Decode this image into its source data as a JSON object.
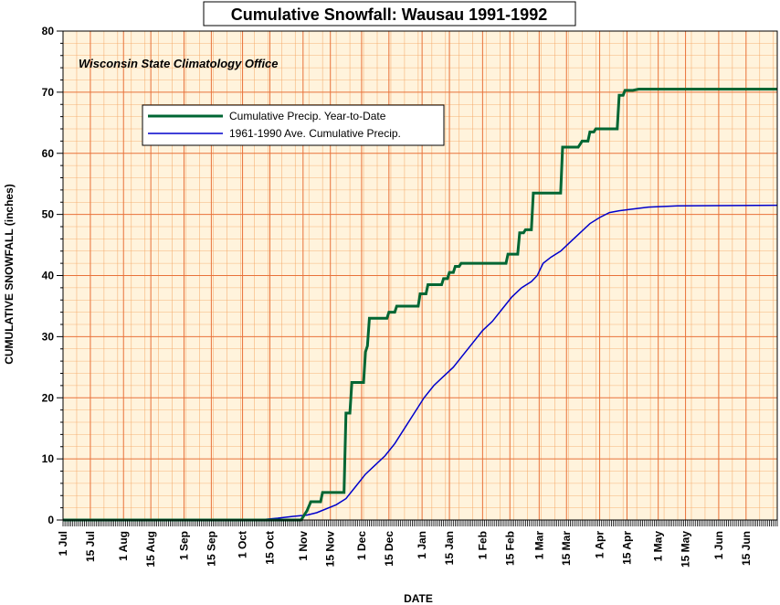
{
  "chart_data": {
    "type": "line",
    "title": "Cumulative Snowfall: Wausau 1991-1992",
    "annotation": "Wisconsin State Climatology Office",
    "xlabel": "DATE",
    "ylabel": "CUMULATIVE SNOWFALL (inches)",
    "ylim": [
      0,
      80
    ],
    "y_ticks": [
      "0",
      "10",
      "20",
      "30",
      "40",
      "50",
      "60",
      "70",
      "80"
    ],
    "x_tick_labels": [
      "1 Jul",
      "15 Jul",
      "1 Aug",
      "15 Aug",
      "1 Sep",
      "15 Sep",
      "1 Oct",
      "15 Oct",
      "1 Nov",
      "15 Nov",
      "1 Dec",
      "15 Dec",
      "1 Jan",
      "15 Jan",
      "1 Feb",
      "15 Feb",
      "1 Mar",
      "15 Mar",
      "1 Apr",
      "15 Apr",
      "1 May",
      "15 May",
      "1 Jun",
      "15 Jun"
    ],
    "x_tick_days": [
      0,
      14,
      31,
      45,
      62,
      76,
      92,
      106,
      123,
      137,
      153,
      167,
      184,
      198,
      215,
      229,
      244,
      258,
      275,
      289,
      305,
      319,
      336,
      350
    ],
    "x_range_days": [
      0,
      366
    ],
    "grid": true,
    "grid_color": "#f4a460",
    "plot_background": "#fff3dc",
    "legend_position": "upper-left",
    "series": [
      {
        "name": "Cumulative Precip. Year-to-Date",
        "color": "#006633",
        "step": true,
        "points": [
          [
            0,
            0
          ],
          [
            122,
            0
          ],
          [
            125,
            1.5
          ],
          [
            127,
            3
          ],
          [
            132,
            3
          ],
          [
            133,
            4.5
          ],
          [
            144,
            4.5
          ],
          [
            145,
            17.5
          ],
          [
            147,
            17.5
          ],
          [
            148,
            22.5
          ],
          [
            154,
            22.5
          ],
          [
            155,
            27.5
          ],
          [
            156,
            28.5
          ],
          [
            157,
            33
          ],
          [
            166,
            33
          ],
          [
            167,
            34
          ],
          [
            170,
            34
          ],
          [
            171,
            35
          ],
          [
            182,
            35
          ],
          [
            183,
            37
          ],
          [
            186,
            37
          ],
          [
            187,
            38.5
          ],
          [
            194,
            38.5
          ],
          [
            195,
            39.5
          ],
          [
            197,
            39.5
          ],
          [
            198,
            40.5
          ],
          [
            200,
            40.5
          ],
          [
            201,
            41.5
          ],
          [
            203,
            41.5
          ],
          [
            204,
            42
          ],
          [
            227,
            42
          ],
          [
            228,
            43.5
          ],
          [
            233,
            43.5
          ],
          [
            234,
            47
          ],
          [
            236,
            47
          ],
          [
            237,
            47.5
          ],
          [
            240,
            47.5
          ],
          [
            241,
            53.5
          ],
          [
            255,
            53.5
          ],
          [
            256,
            61
          ],
          [
            264,
            61
          ],
          [
            266,
            62
          ],
          [
            269,
            62
          ],
          [
            270,
            63.5
          ],
          [
            272,
            63.5
          ],
          [
            273,
            64
          ],
          [
            284,
            64
          ],
          [
            285,
            69.5
          ],
          [
            287,
            69.5
          ],
          [
            288,
            70.3
          ],
          [
            292,
            70.3
          ],
          [
            295,
            70.5
          ],
          [
            366,
            70.5
          ]
        ]
      },
      {
        "name": "1961-1990 Ave. Cumulative Precip.",
        "color": "#0000cc",
        "step": false,
        "points": [
          [
            0,
            0
          ],
          [
            100,
            0
          ],
          [
            110,
            0.3
          ],
          [
            118,
            0.6
          ],
          [
            125,
            0.8
          ],
          [
            130,
            1.2
          ],
          [
            140,
            2.5
          ],
          [
            145,
            3.5
          ],
          [
            150,
            5.5
          ],
          [
            155,
            7.5
          ],
          [
            160,
            9
          ],
          [
            165,
            10.5
          ],
          [
            170,
            12.5
          ],
          [
            175,
            15
          ],
          [
            180,
            17.5
          ],
          [
            185,
            20
          ],
          [
            190,
            22
          ],
          [
            195,
            23.5
          ],
          [
            200,
            25
          ],
          [
            205,
            27
          ],
          [
            210,
            29
          ],
          [
            215,
            31
          ],
          [
            220,
            32.5
          ],
          [
            225,
            34.5
          ],
          [
            230,
            36.5
          ],
          [
            235,
            38
          ],
          [
            240,
            39
          ],
          [
            243,
            40
          ],
          [
            246,
            42
          ],
          [
            250,
            43
          ],
          [
            255,
            44
          ],
          [
            260,
            45.5
          ],
          [
            265,
            47
          ],
          [
            270,
            48.5
          ],
          [
            275,
            49.5
          ],
          [
            280,
            50.3
          ],
          [
            285,
            50.6
          ],
          [
            290,
            50.8
          ],
          [
            300,
            51.2
          ],
          [
            315,
            51.4
          ],
          [
            366,
            51.5
          ]
        ]
      }
    ]
  }
}
